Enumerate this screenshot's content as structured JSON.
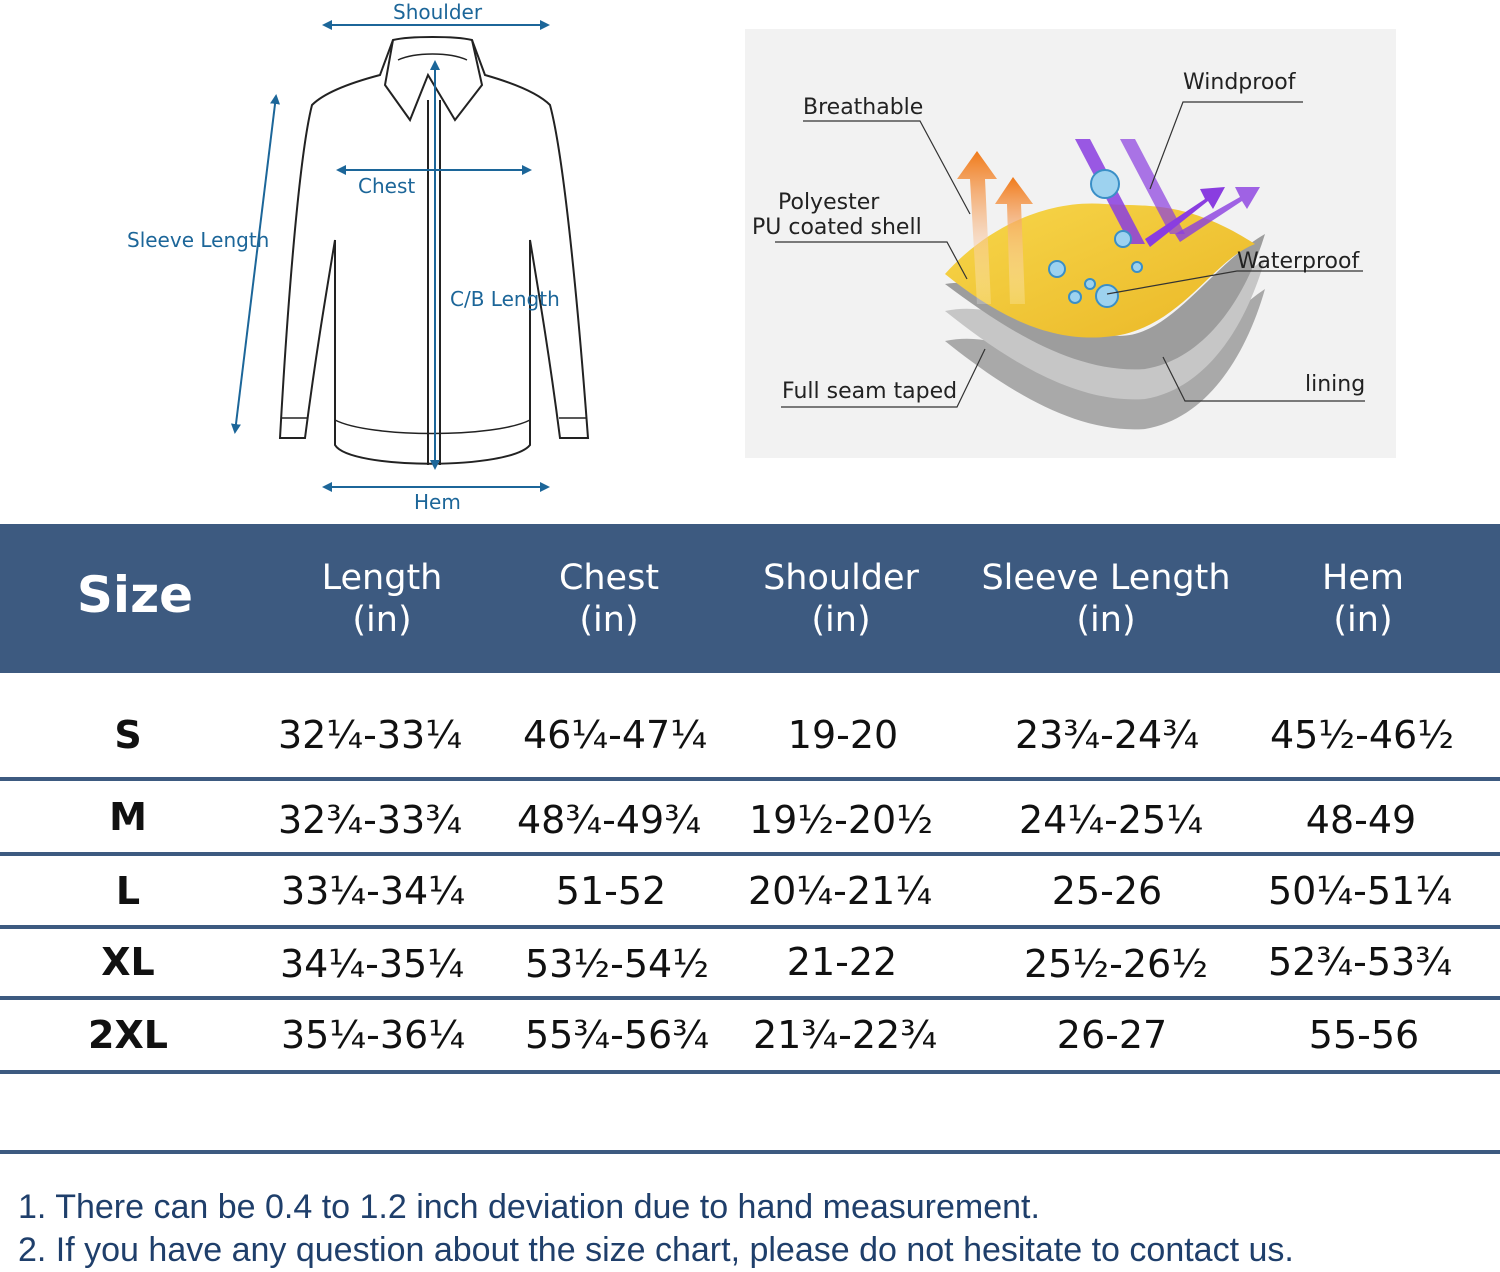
{
  "jacket_diagram": {
    "labels": {
      "shoulder": "Shoulder",
      "chest": "Chest",
      "sleeve_length": "Sleeve Length",
      "cb_length": "C/B Length",
      "hem": "Hem"
    }
  },
  "fabric_diagram": {
    "labels": {
      "breathable": "Breathable",
      "windproof": "Windproof",
      "polyester_line1": "Polyester",
      "polyester_line2": "PU coated shell",
      "waterproof": "Waterproof",
      "full_seam_taped": "Full seam taped",
      "lining": "lining"
    },
    "colors": {
      "shell": "#f5cf3a",
      "breathable_arrow": "#f07a1a",
      "wind_arrow": "#8a3de0",
      "layer": "#b5b5b5"
    }
  },
  "size_table": {
    "header": {
      "size": "Size",
      "columns": [
        {
          "name": "Length",
          "unit": "(in)"
        },
        {
          "name": "Chest",
          "unit": "(in)"
        },
        {
          "name": "Shoulder",
          "unit": "(in)"
        },
        {
          "name": "Sleeve Length",
          "unit": "(in)"
        },
        {
          "name": "Hem",
          "unit": "(in)"
        }
      ]
    },
    "rows": [
      {
        "size": "S",
        "length": "32¼-33¼",
        "chest": "46¼-47¼",
        "shoulder": "19-20",
        "sleeve": "23¾-24¾",
        "hem": "45½-46½"
      },
      {
        "size": "M",
        "length": "32¾-33¾",
        "chest": "48¾-49¾",
        "shoulder": "19½-20½",
        "sleeve": "24¼-25¼",
        "hem": "48-49"
      },
      {
        "size": "L",
        "length": "33¼-34¼",
        "chest": "51-52",
        "shoulder": "20¼-21¼",
        "sleeve": "25-26",
        "hem": "50¼-51¼"
      },
      {
        "size": "XL",
        "length": "34¼-35¼",
        "chest": "53½-54½",
        "shoulder": "21-22",
        "sleeve": "25½-26½",
        "hem": "52¾-53¾"
      },
      {
        "size": "2XL",
        "length": "35¼-36¼",
        "chest": "55¾-56¾",
        "shoulder": "21¾-22¾",
        "sleeve": "26-27",
        "hem": "55-56"
      }
    ],
    "colors": {
      "header_bg": "#3d5a80",
      "header_text": "#ffffff"
    }
  },
  "notes": [
    "1. There can be 0.4 to 1.2 inch deviation due to hand measurement.",
    "2. If you have any question about the size chart, please do not hesitate to contact us."
  ]
}
